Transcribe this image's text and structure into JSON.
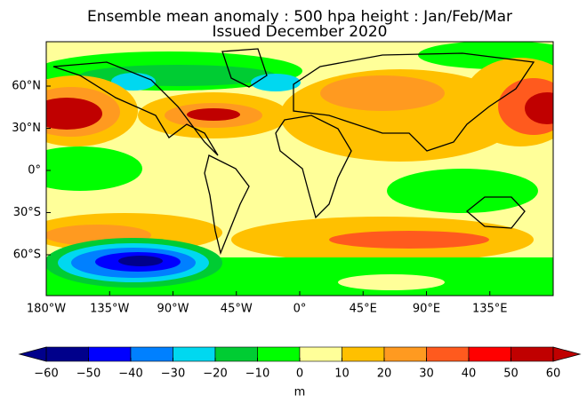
{
  "title": "Ensemble mean anomaly : 500 hpa height : Jan/Feb/Mar",
  "subtitle": "Issued December 2020",
  "map": {
    "lat_ticks": [
      {
        "value": 60,
        "label": "60°N"
      },
      {
        "value": 30,
        "label": "30°N"
      },
      {
        "value": 0,
        "label": "0°"
      },
      {
        "value": -30,
        "label": "30°S"
      },
      {
        "value": -60,
        "label": "60°S"
      }
    ],
    "lon_ticks": [
      {
        "value": -180,
        "label": "180°W"
      },
      {
        "value": -135,
        "label": "135°W"
      },
      {
        "value": -90,
        "label": "90°W"
      },
      {
        "value": -45,
        "label": "45°W"
      },
      {
        "value": 0,
        "label": "0°"
      },
      {
        "value": 45,
        "label": "45°E"
      },
      {
        "value": 90,
        "label": "90°E"
      },
      {
        "value": 135,
        "label": "135°E"
      }
    ]
  },
  "colorbar": {
    "type": "colorbar",
    "ticks": [
      {
        "value": -60,
        "label": "−60"
      },
      {
        "value": -50,
        "label": "−50"
      },
      {
        "value": -40,
        "label": "−40"
      },
      {
        "value": -30,
        "label": "−30"
      },
      {
        "value": -20,
        "label": "−20"
      },
      {
        "value": -10,
        "label": "−10"
      },
      0,
      10,
      20,
      30,
      40,
      50,
      60
    ],
    "colors": [
      "#00008b",
      "#0000ff",
      "#0080ff",
      "#00d8f0",
      "#00cc33",
      "#00ff00",
      "#ffff99",
      "#ffc000",
      "#ff9a20",
      "#ff5a1e",
      "#ff0000",
      "#c00000"
    ],
    "label": "m"
  }
}
